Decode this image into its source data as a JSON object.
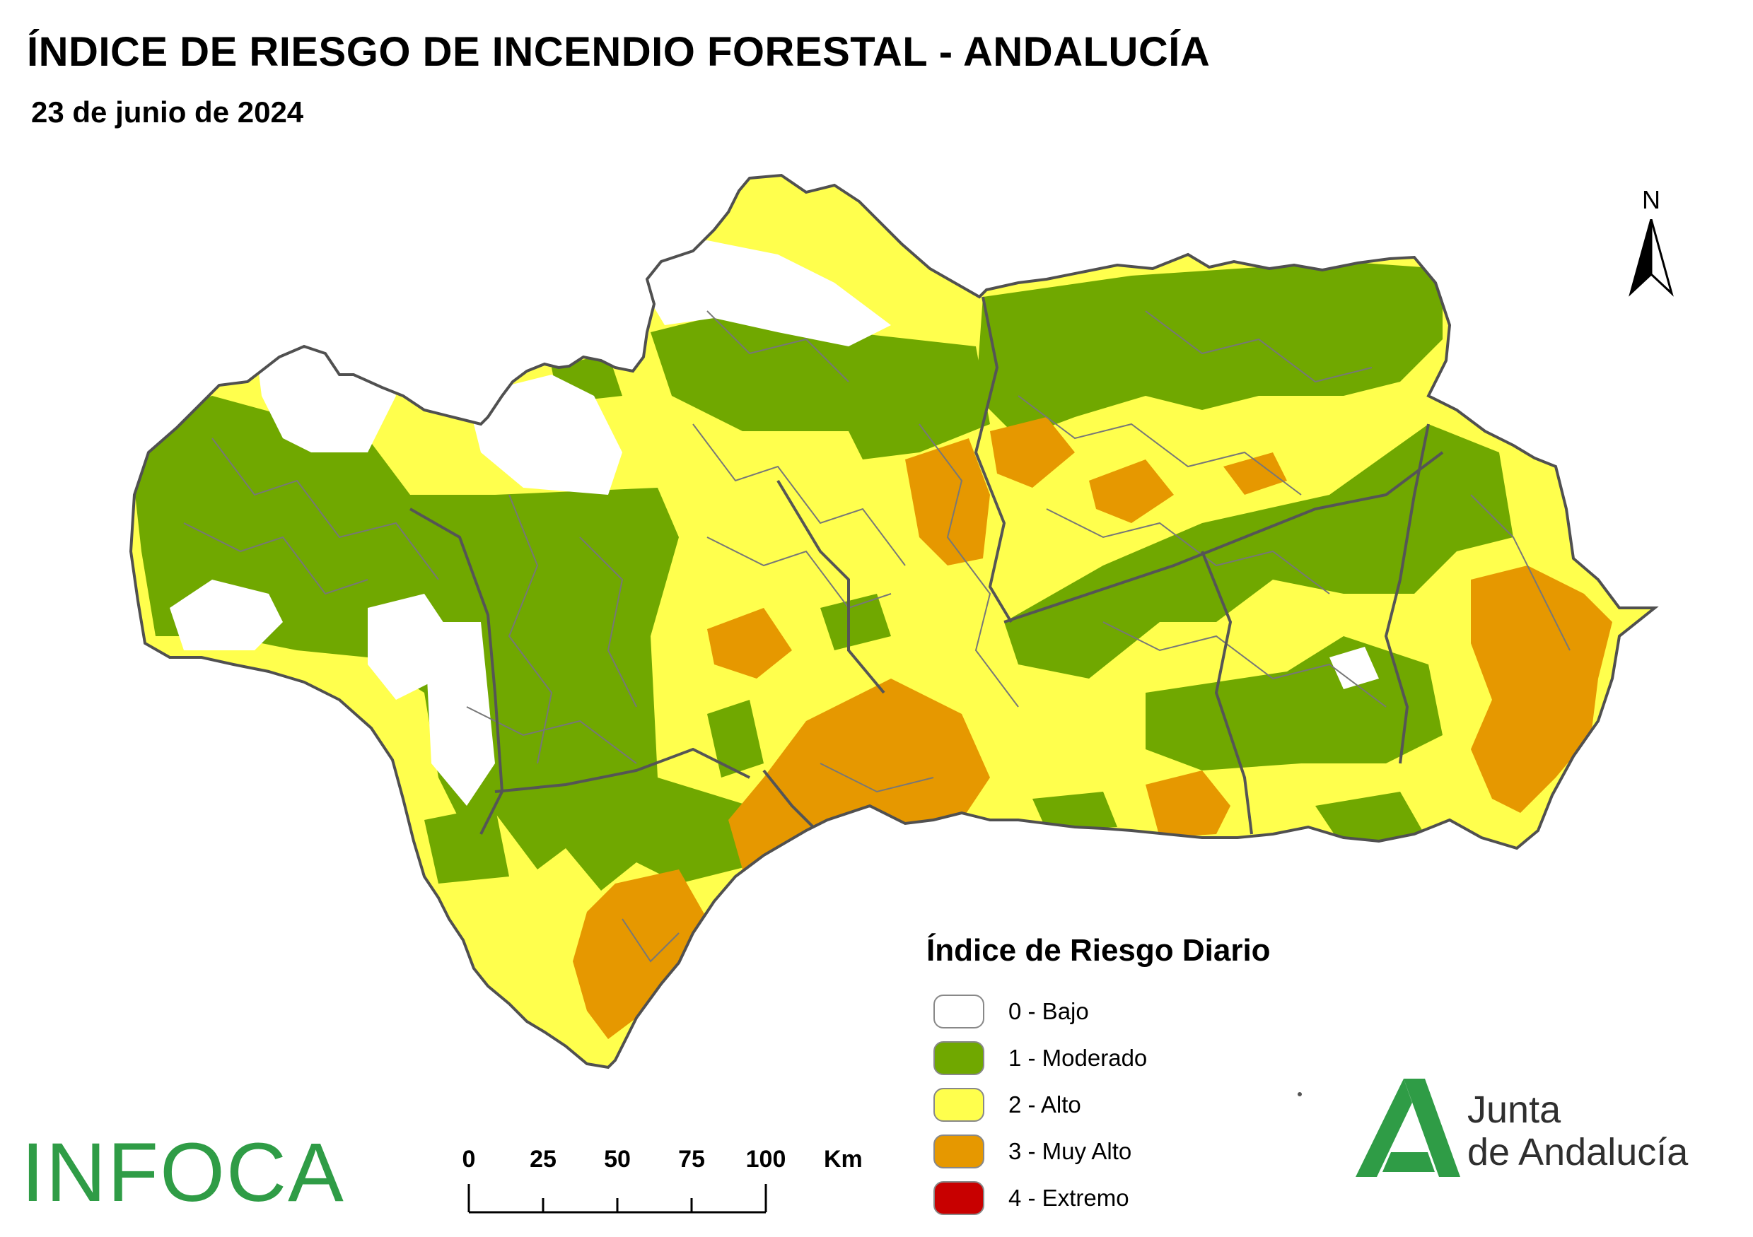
{
  "header": {
    "title": "ÍNDICE DE RIESGO DE INCENDIO FORESTAL - ANDALUCÍA",
    "date": "23 de junio de 2024"
  },
  "legend": {
    "title": "Índice de Riesgo Diario",
    "items": [
      {
        "label": "0 - Bajo",
        "color": "#ffffff"
      },
      {
        "label": "1 - Moderado",
        "color": "#70a800"
      },
      {
        "label": "2 - Alto",
        "color": "#ffff4d"
      },
      {
        "label": "3 - Muy Alto",
        "color": "#e69800"
      },
      {
        "label": "4 - Extremo",
        "color": "#c80000"
      }
    ]
  },
  "north_arrow": {
    "letter": "N"
  },
  "scale_bar": {
    "ticks": [
      "0",
      "25",
      "50",
      "75",
      "100"
    ],
    "unit": "Km"
  },
  "logos": {
    "infoca": "INFOCA",
    "junta_line1": "Junta",
    "junta_line2": "de Andalucía",
    "junta_color": "#2f9c46"
  },
  "map_colors": {
    "bajo": "#ffffff",
    "moderado": "#70a800",
    "alto": "#ffff4d",
    "muy_alto": "#e69800",
    "boundary": "#555555"
  }
}
